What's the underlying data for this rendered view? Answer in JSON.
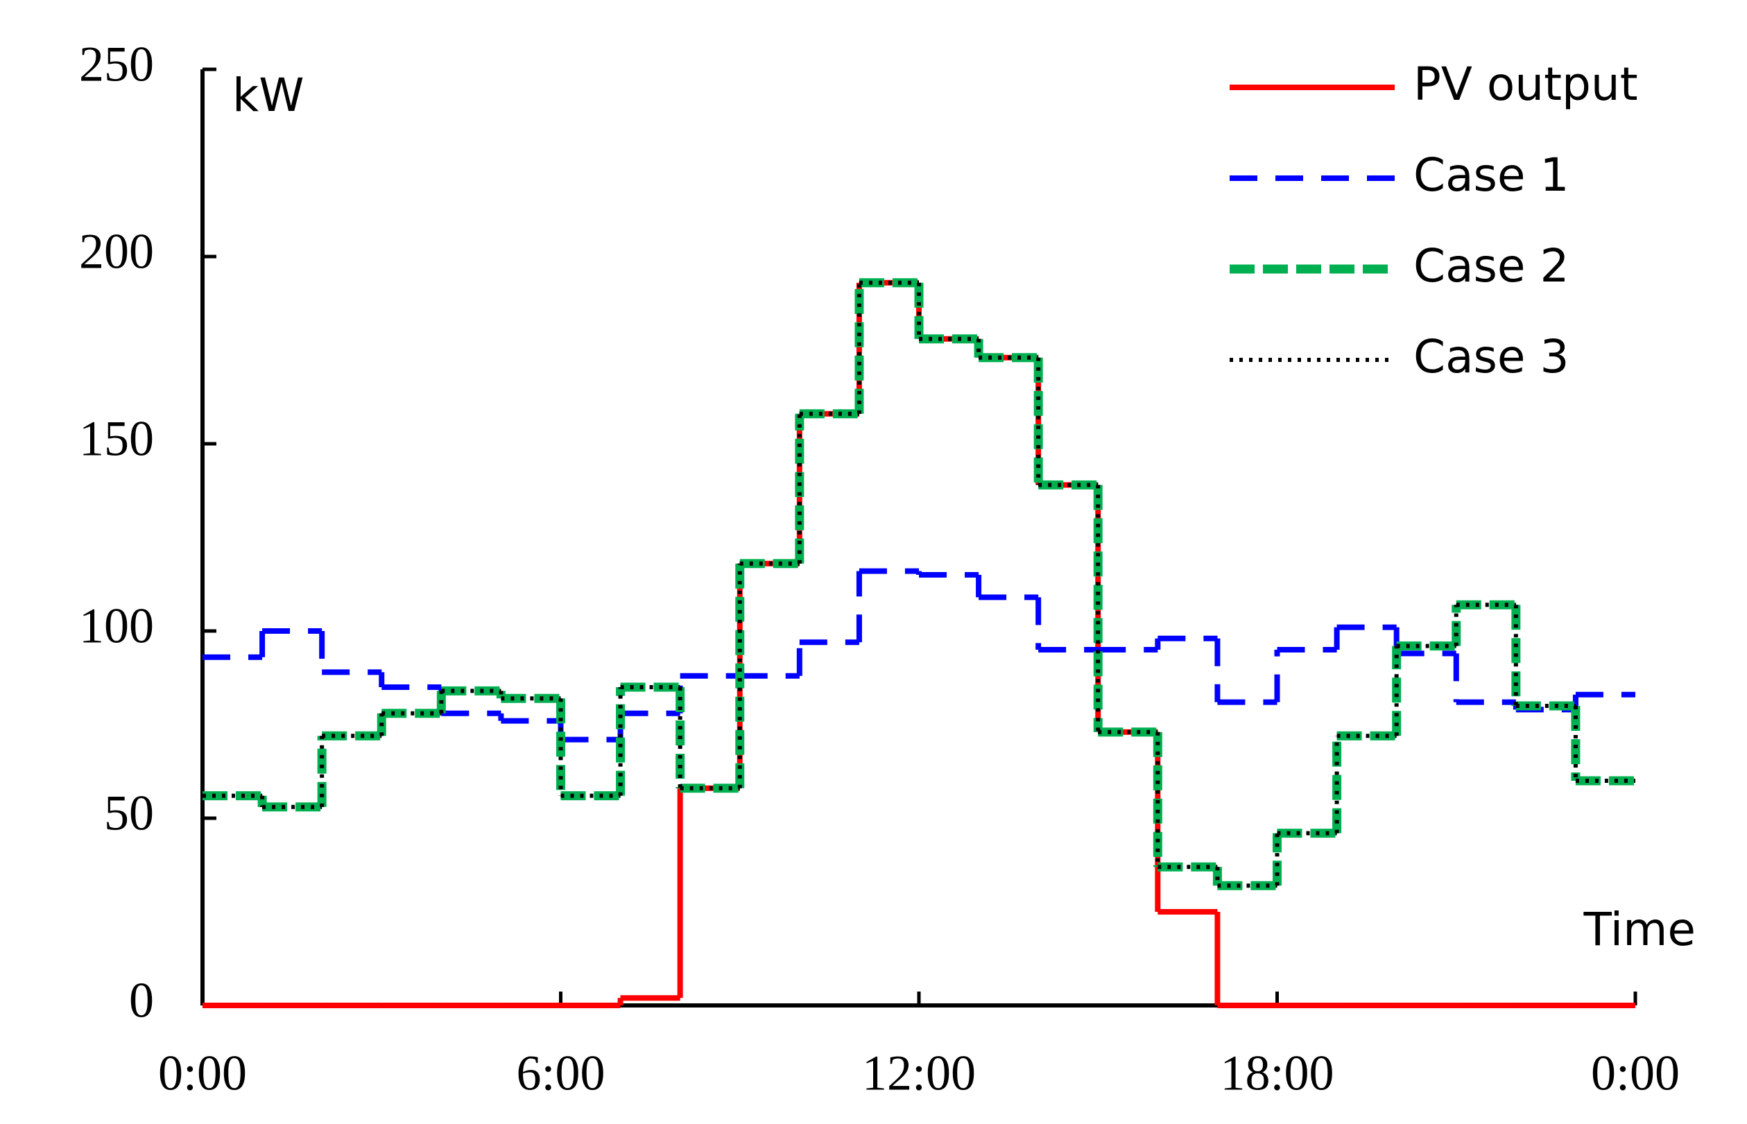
{
  "chart_data": {
    "type": "step",
    "y_label": "kW",
    "x_label": "Time",
    "x": [
      0,
      1,
      2,
      3,
      4,
      5,
      6,
      7,
      8,
      9,
      10,
      11,
      12,
      13,
      14,
      15,
      16,
      17,
      18,
      19,
      20,
      21,
      22,
      23
    ],
    "xlim": [
      0,
      24
    ],
    "xticks": [
      {
        "value": 0,
        "label": "0:00"
      },
      {
        "value": 6,
        "label": "6:00"
      },
      {
        "value": 12,
        "label": "12:00"
      },
      {
        "value": 18,
        "label": "18:00"
      },
      {
        "value": 24,
        "label": "0:00"
      }
    ],
    "ylim": [
      0,
      250
    ],
    "yticks": [
      0,
      50,
      100,
      150,
      200,
      250
    ],
    "legend": "upper-right",
    "series": [
      {
        "name": "PV output",
        "color": "#ff0000",
        "style": "solid",
        "values": [
          0,
          0,
          0,
          0,
          0,
          0,
          0,
          2,
          58,
          118,
          158,
          193,
          178,
          173,
          139,
          73,
          25,
          0,
          0,
          0,
          0,
          0,
          0,
          0
        ]
      },
      {
        "name": "Case 1",
        "color": "#0000ff",
        "style": "dashed",
        "values": [
          93,
          100,
          89,
          85,
          78,
          76,
          71,
          78,
          88,
          88,
          97,
          116,
          115,
          109,
          95,
          95,
          98,
          81,
          95,
          101,
          94,
          81,
          79,
          83
        ]
      },
      {
        "name": "Case 2",
        "color": "#00b050",
        "style": "long-dashed",
        "values": [
          56,
          53,
          72,
          78,
          84,
          82,
          56,
          85,
          58,
          118,
          158,
          193,
          178,
          173,
          139,
          73,
          37,
          32,
          46,
          72,
          96,
          107,
          80,
          60
        ]
      },
      {
        "name": "Case 3",
        "color": "#000000",
        "style": "dotted",
        "values": [
          56,
          53,
          72,
          78,
          84,
          82,
          56,
          85,
          58,
          118,
          158,
          193,
          178,
          173,
          139,
          73,
          37,
          32,
          46,
          72,
          96,
          107,
          80,
          60
        ]
      }
    ]
  }
}
